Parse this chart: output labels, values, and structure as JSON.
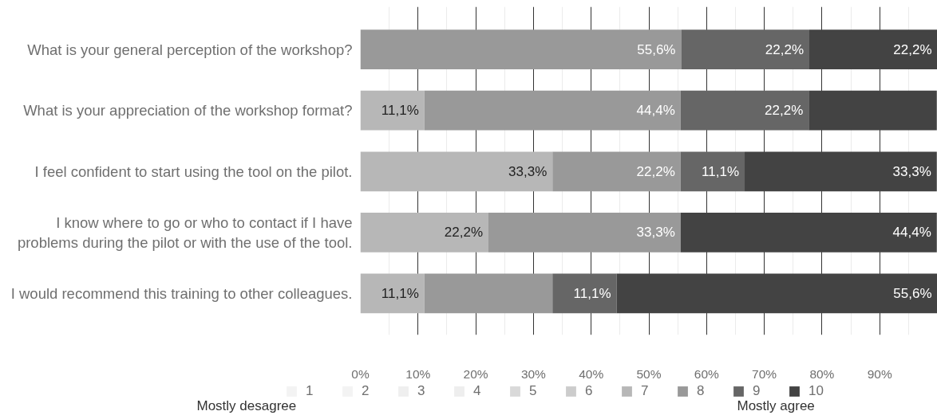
{
  "chart_data": {
    "type": "bar",
    "orientation": "horizontal",
    "stacked": true,
    "categories": [
      "What is your general perception of the workshop?",
      "What is your appreciation of the workshop format?",
      "I feel confident to start using the tool on the pilot.",
      "I know where to go or who to contact if I have problems during the pilot or with the use of the tool.",
      "I would recommend this training to other colleagues."
    ],
    "series": [
      {
        "name": "1",
        "color": "#f3f3f3",
        "values": [
          0,
          0,
          0,
          0,
          0
        ]
      },
      {
        "name": "2",
        "color": "#f3f3f3",
        "values": [
          0,
          0,
          0,
          0,
          0
        ]
      },
      {
        "name": "3",
        "color": "#efefef",
        "values": [
          0,
          0,
          0,
          0,
          0
        ]
      },
      {
        "name": "4",
        "color": "#eeeeee",
        "values": [
          0,
          0,
          0,
          0,
          0
        ]
      },
      {
        "name": "5",
        "color": "#d9d9d9",
        "values": [
          0,
          0,
          0,
          0,
          0
        ]
      },
      {
        "name": "6",
        "color": "#cccccc",
        "values": [
          0,
          0,
          0,
          0,
          0
        ]
      },
      {
        "name": "7",
        "color": "#b7b7b7",
        "values": [
          0,
          11.1,
          33.3,
          22.2,
          11.1
        ],
        "value_labels": [
          null,
          "11,1%",
          "33,3%",
          "22,2%",
          "11,1%"
        ]
      },
      {
        "name": "8",
        "color": "#999999",
        "values": [
          55.6,
          44.4,
          22.2,
          33.3,
          22.2
        ],
        "value_labels": [
          "55,6%",
          "44,4%",
          "22,2%",
          "33,3%",
          null
        ]
      },
      {
        "name": "9",
        "color": "#666666",
        "values": [
          22.2,
          22.2,
          11.1,
          0,
          11.1
        ],
        "value_labels": [
          "22,2%",
          "22,2%",
          "11,1%",
          null,
          "11,1%"
        ]
      },
      {
        "name": "10",
        "color": "#434343",
        "values": [
          22.2,
          22.2,
          33.3,
          44.4,
          55.6
        ],
        "value_labels": [
          "22,2%",
          null,
          "33,3%",
          "44,4%",
          "55,6%"
        ]
      }
    ],
    "xlim": [
      0,
      100
    ],
    "xticks": [
      {
        "value": 0,
        "label": "0%"
      },
      {
        "value": 10,
        "label": "10%"
      },
      {
        "value": 20,
        "label": "20%"
      },
      {
        "value": 30,
        "label": "30%"
      },
      {
        "value": 40,
        "label": "40%"
      },
      {
        "value": 50,
        "label": "50%"
      },
      {
        "value": 60,
        "label": "60%"
      },
      {
        "value": 70,
        "label": "70%"
      },
      {
        "value": 80,
        "label": "80%"
      },
      {
        "value": 90,
        "label": "90%"
      }
    ],
    "grid": "x",
    "legend": "bottom",
    "annotations": [
      "Mostly desagree",
      "Mostly agree"
    ]
  }
}
